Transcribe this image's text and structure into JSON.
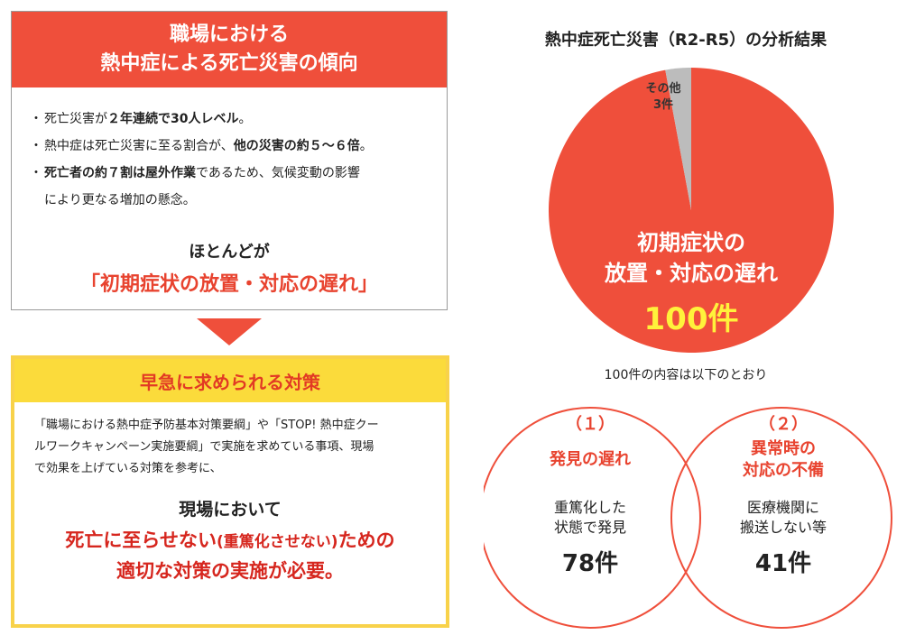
{
  "panel1": {
    "title_line1": "職場における",
    "title_line2": "熱中症による死亡災害の傾向",
    "bullets": [
      {
        "pre": "死亡災害が",
        "bold": "２年連続で30人レベル",
        "post": "。",
        "cont": ""
      },
      {
        "pre": "熱中症は死亡災害に至る割合が、",
        "bold": "他の災害の約５～６倍",
        "post": "。",
        "cont": ""
      },
      {
        "pre": "",
        "bold": "死亡者の約７割は屋外作業",
        "post": "であるため、気候変動の影響",
        "cont": "により更なる増加の懸念。"
      }
    ],
    "summary_line1": "ほとんどが",
    "summary_line2": "「初期症状の放置・対応の遅れ」"
  },
  "panel2": {
    "title": "早急に求められる対策",
    "desc_line1": "「職場における熱中症予防基本対策要綱」や「STOP! 熱中症クー",
    "desc_line2": "ルワークキャンペーン実施要綱」で実施を求めている事項、現場",
    "desc_line3": "で効果を上げている対策を参考に、",
    "summary_line1": "現場において",
    "summary_line2a": "死亡に至らせない",
    "summary_line2b": "(重篤化させない)",
    "summary_line2c": "ための",
    "summary_line3": "適切な対策の実施が必要。"
  },
  "chart_data": {
    "type": "pie",
    "title": "熱中症死亡災害（R2-R5）の分析結果",
    "slices": [
      {
        "label_line1": "初期症状の",
        "label_line2": "放置・対応の遅れ",
        "count_label": "100件",
        "value": 100,
        "color": "#ef4f3b"
      },
      {
        "label_line1": "その他",
        "label_line2": "",
        "count_label": "3件",
        "value": 3,
        "color": "#bcbcbc"
      }
    ],
    "breakdown_note": "100件の内容は以下のとおり",
    "breakdown": [
      {
        "num": "（１）",
        "title_line1": "発見の遅れ",
        "title_line2": "",
        "desc_line1": "重篤化した",
        "desc_line2": "状態で発見",
        "count_label": "78件",
        "value": 78
      },
      {
        "num": "（２）",
        "title_line1": "異常時の",
        "title_line2": "対応の不備",
        "desc_line1": "医療機関に",
        "desc_line2": "搬送しない等",
        "count_label": "41件",
        "value": 41
      }
    ]
  },
  "colors": {
    "accent_red": "#ef4f3b",
    "accent_yellow": "#fbdb3b",
    "pie_other": "#bcbcbc",
    "highlight_yellow": "#fff23b"
  }
}
